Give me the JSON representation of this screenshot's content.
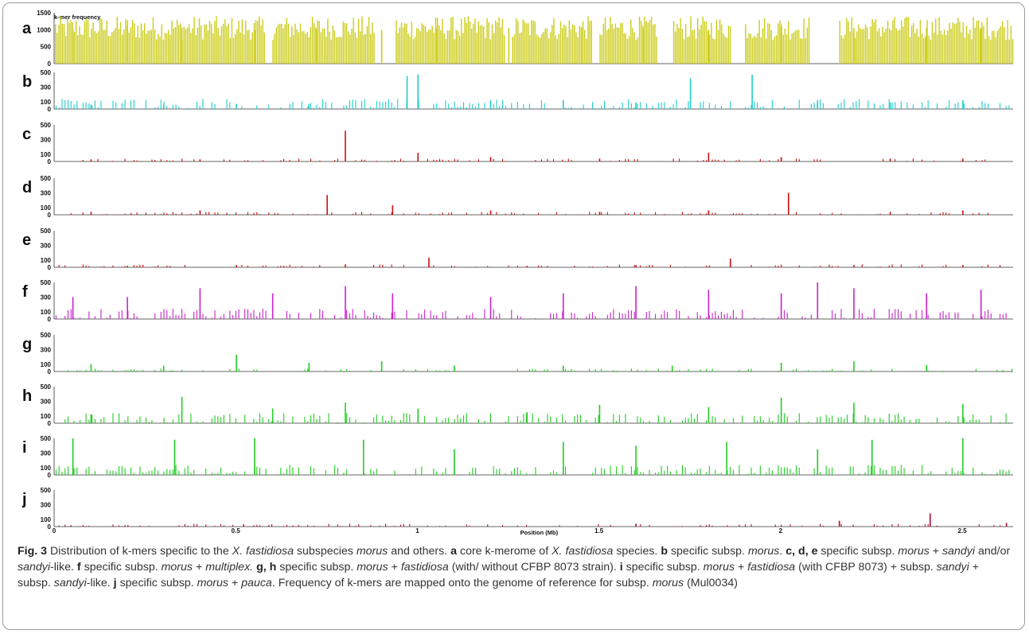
{
  "figure": {
    "xlabel": "Position (Mb)",
    "xticks": [
      "0",
      "0.5",
      "1",
      "1.5",
      "2",
      "2.5"
    ],
    "xtick_values": [
      0,
      0.5,
      1,
      1.5,
      2,
      2.5
    ],
    "xlim": [
      0,
      2.64
    ],
    "top_label": "k-mer frequency"
  },
  "chart_data": [
    {
      "type": "bar",
      "panel": "a",
      "title": "k-mer frequency",
      "color": "#cccc1a",
      "yticks": [
        "1500",
        "1000",
        "500",
        "0"
      ],
      "ylim": [
        0,
        1500
      ],
      "x_unit": "Mb",
      "x": [
        0.05,
        0.2,
        0.35,
        0.55,
        0.72,
        0.9,
        1.05,
        1.25,
        1.45,
        1.62,
        1.8,
        2.0,
        2.2,
        2.4,
        2.55
      ],
      "values": [
        1050,
        1100,
        1050,
        1000,
        1000,
        1000,
        1050,
        1050,
        1050,
        1050,
        1000,
        1050,
        1050,
        1050,
        1050
      ]
    },
    {
      "type": "bar",
      "panel": "b",
      "title": "",
      "color": "#22cccc",
      "yticks": [
        "500",
        "300",
        "100",
        "0"
      ],
      "ylim": [
        0,
        500
      ],
      "x_unit": "Mb",
      "x": [
        0.1,
        0.3,
        0.5,
        0.7,
        0.97,
        1.0,
        1.2,
        1.4,
        1.6,
        1.75,
        1.92,
        2.1,
        2.3,
        2.5
      ],
      "values": [
        60,
        60,
        70,
        70,
        450,
        470,
        120,
        120,
        90,
        420,
        470,
        120,
        90,
        120
      ]
    },
    {
      "type": "bar",
      "panel": "c",
      "title": "",
      "color": "#cc1111",
      "yticks": [
        "500",
        "300",
        "100",
        "0"
      ],
      "ylim": [
        0,
        500
      ],
      "x_unit": "Mb",
      "x": [
        0.1,
        0.4,
        0.8,
        1.0,
        1.2,
        1.5,
        1.8,
        2.0,
        2.3,
        2.5
      ],
      "values": [
        30,
        30,
        420,
        120,
        60,
        40,
        120,
        60,
        40,
        40
      ]
    },
    {
      "type": "bar",
      "panel": "d",
      "title": "",
      "color": "#cc1111",
      "yticks": [
        "500",
        "300",
        "100",
        "0"
      ],
      "ylim": [
        0,
        500
      ],
      "x_unit": "Mb",
      "x": [
        0.1,
        0.4,
        0.75,
        0.93,
        1.2,
        1.5,
        1.8,
        2.02,
        2.3,
        2.5
      ],
      "values": [
        40,
        60,
        270,
        130,
        60,
        40,
        60,
        300,
        40,
        60
      ]
    },
    {
      "type": "bar",
      "panel": "e",
      "title": "",
      "color": "#cc1111",
      "yticks": [
        "500",
        "300",
        "100",
        "0"
      ],
      "ylim": [
        0,
        500
      ],
      "x_unit": "Mb",
      "x": [
        0.2,
        0.5,
        0.8,
        1.03,
        1.3,
        1.6,
        1.86,
        2.2,
        2.5
      ],
      "values": [
        20,
        30,
        40,
        130,
        20,
        30,
        120,
        30,
        30
      ]
    },
    {
      "type": "bar",
      "panel": "f",
      "title": "",
      "color": "#cc22cc",
      "yticks": [
        "500",
        "300",
        "100",
        "0"
      ],
      "ylim": [
        0,
        500
      ],
      "x_unit": "Mb",
      "x": [
        0.05,
        0.2,
        0.4,
        0.6,
        0.8,
        0.93,
        1.2,
        1.4,
        1.6,
        1.8,
        2.0,
        2.1,
        2.2,
        2.4,
        2.55
      ],
      "values": [
        300,
        300,
        420,
        350,
        450,
        350,
        300,
        350,
        450,
        400,
        350,
        500,
        420,
        350,
        400
      ]
    },
    {
      "type": "bar",
      "panel": "g",
      "title": "",
      "color": "#22cc22",
      "yticks": [
        "500",
        "300",
        "100",
        "0"
      ],
      "ylim": [
        0,
        500
      ],
      "x_unit": "Mb",
      "x": [
        0.1,
        0.3,
        0.5,
        0.7,
        0.9,
        1.1,
        1.4,
        1.7,
        2.0,
        2.2,
        2.4
      ],
      "values": [
        100,
        80,
        230,
        120,
        140,
        80,
        80,
        80,
        120,
        140,
        90
      ]
    },
    {
      "type": "bar",
      "panel": "h",
      "title": "",
      "color": "#22cc22",
      "yticks": [
        "500",
        "300",
        "100",
        "0"
      ],
      "ylim": [
        0,
        500
      ],
      "x_unit": "Mb",
      "x": [
        0.1,
        0.35,
        0.6,
        0.8,
        1.0,
        1.3,
        1.5,
        1.8,
        2.0,
        2.2,
        2.5
      ],
      "values": [
        120,
        360,
        200,
        280,
        200,
        150,
        250,
        220,
        350,
        280,
        260
      ]
    },
    {
      "type": "bar",
      "panel": "i",
      "title": "",
      "color": "#22cc22",
      "yticks": [
        "500",
        "300",
        "100",
        "0"
      ],
      "ylim": [
        0,
        500
      ],
      "x_unit": "Mb",
      "x": [
        0.05,
        0.33,
        0.55,
        0.85,
        1.1,
        1.4,
        1.6,
        1.85,
        2.1,
        2.25,
        2.5
      ],
      "values": [
        500,
        480,
        500,
        480,
        350,
        450,
        400,
        450,
        350,
        480,
        500
      ]
    },
    {
      "type": "bar",
      "panel": "j",
      "title": "",
      "color": "#b01030",
      "yticks": [
        "500",
        "300",
        "100",
        "0"
      ],
      "ylim": [
        0,
        500
      ],
      "x_unit": "Mb",
      "x": [
        0.52,
        1.6,
        2.16,
        2.41,
        2.62
      ],
      "values": [
        30,
        40,
        80,
        180,
        50
      ]
    }
  ],
  "caption": {
    "fig": "Fig. 3",
    "parts": [
      {
        "t": " Distribution of k-mers specific to the ",
        "s": "n"
      },
      {
        "t": "X. fastidiosa",
        "s": "i"
      },
      {
        "t": " subspecies ",
        "s": "n"
      },
      {
        "t": "morus",
        "s": "i"
      },
      {
        "t": " and others. ",
        "s": "n"
      },
      {
        "t": "a",
        "s": "b"
      },
      {
        "t": " core k-merome of ",
        "s": "n"
      },
      {
        "t": "X. fastidiosa",
        "s": "i"
      },
      {
        "t": " species. ",
        "s": "n"
      },
      {
        "t": "b",
        "s": "b"
      },
      {
        "t": " specific subsp. ",
        "s": "n"
      },
      {
        "t": "morus",
        "s": "i"
      },
      {
        "t": ". ",
        "s": "n"
      },
      {
        "t": "c, d, e",
        "s": "b"
      },
      {
        "t": " specific subsp. ",
        "s": "n"
      },
      {
        "t": "morus",
        "s": "i"
      },
      {
        "t": " + ",
        "s": "n"
      },
      {
        "t": "sandyi",
        "s": "i"
      },
      {
        "t": " and/or ",
        "s": "n"
      },
      {
        "t": "sandyi",
        "s": "i"
      },
      {
        "t": "-like. ",
        "s": "n"
      },
      {
        "t": "f",
        "s": "b"
      },
      {
        "t": " specific subsp. ",
        "s": "n"
      },
      {
        "t": "morus",
        "s": "i"
      },
      {
        "t": " + ",
        "s": "n"
      },
      {
        "t": "multiplex.",
        "s": "i"
      },
      {
        "t": " ",
        "s": "n"
      },
      {
        "t": "g, h",
        "s": "b"
      },
      {
        "t": " specific subsp. ",
        "s": "n"
      },
      {
        "t": "morus",
        "s": "i"
      },
      {
        "t": " + ",
        "s": "n"
      },
      {
        "t": "fastidiosa",
        "s": "i"
      },
      {
        "t": " (with/ without CFBP 8073 strain). ",
        "s": "n"
      },
      {
        "t": "i",
        "s": "b"
      },
      {
        "t": " specific subsp. ",
        "s": "n"
      },
      {
        "t": "morus",
        "s": "i"
      },
      {
        "t": " + ",
        "s": "n"
      },
      {
        "t": "fastidiosa",
        "s": "i"
      },
      {
        "t": " (with CFBP 8073) + subsp. ",
        "s": "n"
      },
      {
        "t": "sandyi",
        "s": "i"
      },
      {
        "t": " + subsp. ",
        "s": "n"
      },
      {
        "t": "sandyi",
        "s": "i"
      },
      {
        "t": "-like. ",
        "s": "n"
      },
      {
        "t": "j",
        "s": "b"
      },
      {
        "t": " specific subsp. ",
        "s": "n"
      },
      {
        "t": "morus",
        "s": "i"
      },
      {
        "t": " + ",
        "s": "n"
      },
      {
        "t": "pauca",
        "s": "i"
      },
      {
        "t": ". Frequency of k-mers are mapped onto the genome of reference for subsp. ",
        "s": "n"
      },
      {
        "t": "morus",
        "s": "i"
      },
      {
        "t": " (Mul0034)",
        "s": "n"
      }
    ]
  }
}
